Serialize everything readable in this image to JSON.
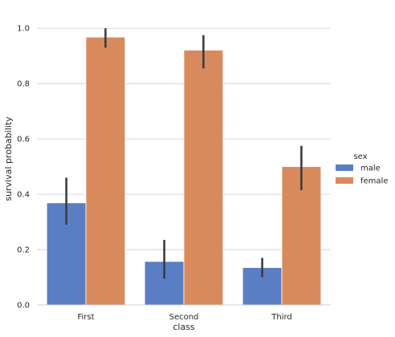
{
  "chart_data": {
    "type": "bar",
    "xlabel": "class",
    "ylabel": "survival probability",
    "categories": [
      "First",
      "Second",
      "Third"
    ],
    "ylim": [
      0,
      1.05
    ],
    "yticks": [
      "0.0",
      "0.2",
      "0.4",
      "0.6",
      "0.8",
      "1.0"
    ],
    "grid": "horizontal",
    "legend": {
      "title": "sex",
      "placement": "right"
    },
    "series": [
      {
        "name": "male",
        "color": "#5a7ec4",
        "values": [
          0.369,
          0.157,
          0.135
        ],
        "ci": [
          [
            0.29,
            0.46
          ],
          [
            0.095,
            0.235
          ],
          [
            0.1,
            0.17
          ]
        ]
      },
      {
        "name": "female",
        "color": "#d98a5c",
        "values": [
          0.968,
          0.921,
          0.5
        ],
        "ci": [
          [
            0.93,
            1.0
          ],
          [
            0.855,
            0.975
          ],
          [
            0.415,
            0.575
          ]
        ]
      }
    ]
  }
}
